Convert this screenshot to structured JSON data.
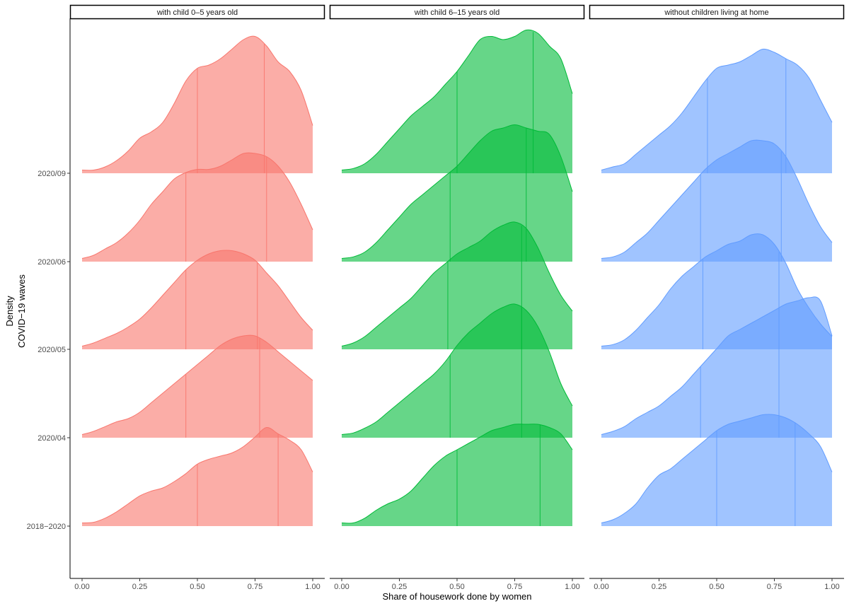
{
  "chart_data": {
    "type": "area",
    "subtype": "ridgeline-density",
    "xlabel": "Share of housework done by women",
    "ylabel_lines": [
      "Density",
      "COVID−19 waves"
    ],
    "x_ticks": [
      "0.00",
      "0.25",
      "0.50",
      "0.75",
      "1.00"
    ],
    "xlim": [
      0,
      1
    ],
    "waves": [
      "2018−2020",
      "2020/04",
      "2020/05",
      "2020/06",
      "2020/09"
    ],
    "grid": false,
    "legend": "none",
    "quantile_lines": "25th and 75th percentile",
    "panels": [
      {
        "title": "with child 0–5 years old",
        "color": "#F8766D",
        "ridges": [
          {
            "wave": "2018−2020",
            "q": [
              0.5,
              0.85
            ],
            "x": [
              0,
              0.05,
              0.1,
              0.15,
              0.2,
              0.25,
              0.3,
              0.35,
              0.4,
              0.45,
              0.5,
              0.55,
              0.6,
              0.65,
              0.7,
              0.75,
              0.8,
              0.85,
              0.9,
              0.95,
              1
            ],
            "y": [
              0.1,
              0.12,
              0.25,
              0.45,
              0.7,
              0.95,
              1.1,
              1.2,
              1.4,
              1.65,
              1.95,
              2.1,
              2.2,
              2.3,
              2.5,
              2.8,
              3.1,
              2.9,
              2.7,
              2.4,
              1.7
            ]
          },
          {
            "wave": "2020/04",
            "q": [
              0.45,
              0.77
            ],
            "x": [
              0,
              0.05,
              0.1,
              0.15,
              0.2,
              0.25,
              0.3,
              0.35,
              0.4,
              0.45,
              0.5,
              0.55,
              0.6,
              0.65,
              0.7,
              0.75,
              0.8,
              0.85,
              0.9,
              0.95,
              1
            ],
            "y": [
              0.1,
              0.2,
              0.35,
              0.5,
              0.6,
              0.8,
              1.1,
              1.4,
              1.7,
              2.0,
              2.3,
              2.6,
              2.9,
              3.1,
              3.2,
              3.2,
              3.0,
              2.7,
              2.4,
              2.1,
              1.8
            ]
          },
          {
            "wave": "2020/05",
            "q": [
              0.45,
              0.76
            ],
            "x": [
              0,
              0.05,
              0.1,
              0.15,
              0.2,
              0.25,
              0.3,
              0.35,
              0.4,
              0.45,
              0.5,
              0.55,
              0.6,
              0.65,
              0.7,
              0.75,
              0.8,
              0.85,
              0.9,
              0.95,
              1
            ],
            "y": [
              0.1,
              0.2,
              0.35,
              0.5,
              0.7,
              0.95,
              1.3,
              1.7,
              2.1,
              2.5,
              2.8,
              3.0,
              3.1,
              3.1,
              3.0,
              2.8,
              2.4,
              2.0,
              1.5,
              1.0,
              0.6
            ]
          },
          {
            "wave": "2020/06",
            "q": [
              0.45,
              0.8
            ],
            "x": [
              0,
              0.05,
              0.1,
              0.15,
              0.2,
              0.25,
              0.3,
              0.35,
              0.4,
              0.45,
              0.5,
              0.55,
              0.6,
              0.65,
              0.7,
              0.75,
              0.8,
              0.85,
              0.9,
              0.95,
              1
            ],
            "y": [
              0.1,
              0.2,
              0.4,
              0.6,
              0.9,
              1.3,
              1.8,
              2.2,
              2.6,
              2.8,
              2.9,
              2.9,
              3.0,
              3.2,
              3.4,
              3.4,
              3.3,
              3.0,
              2.5,
              1.8,
              1.0
            ]
          },
          {
            "wave": "2020/09",
            "q": [
              0.5,
              0.79
            ],
            "x": [
              0,
              0.05,
              0.1,
              0.15,
              0.2,
              0.25,
              0.3,
              0.35,
              0.4,
              0.45,
              0.5,
              0.55,
              0.6,
              0.65,
              0.7,
              0.75,
              0.8,
              0.85,
              0.9,
              0.95,
              1
            ],
            "y": [
              0.1,
              0.1,
              0.2,
              0.4,
              0.7,
              1.1,
              1.3,
              1.6,
              2.2,
              2.9,
              3.3,
              3.4,
              3.6,
              3.9,
              4.2,
              4.3,
              4.0,
              3.5,
              3.2,
              2.6,
              1.5
            ]
          }
        ]
      },
      {
        "title": "with child 6–15 years old",
        "color": "#00BA38",
        "ridges": [
          {
            "wave": "2018−2020",
            "q": [
              0.5,
              0.86
            ],
            "x": [
              0,
              0.05,
              0.1,
              0.15,
              0.2,
              0.25,
              0.3,
              0.35,
              0.4,
              0.45,
              0.5,
              0.55,
              0.6,
              0.65,
              0.7,
              0.75,
              0.8,
              0.85,
              0.9,
              0.95,
              1
            ],
            "y": [
              0.1,
              0.1,
              0.25,
              0.5,
              0.7,
              0.85,
              1.1,
              1.5,
              1.9,
              2.2,
              2.4,
              2.6,
              2.8,
              3.0,
              3.1,
              3.2,
              3.2,
              3.2,
              3.1,
              2.9,
              2.4
            ]
          },
          {
            "wave": "2020/04",
            "q": [
              0.47,
              0.78
            ],
            "x": [
              0,
              0.05,
              0.1,
              0.15,
              0.2,
              0.25,
              0.3,
              0.35,
              0.4,
              0.45,
              0.5,
              0.55,
              0.6,
              0.65,
              0.7,
              0.75,
              0.8,
              0.85,
              0.9,
              0.95,
              1
            ],
            "y": [
              0.1,
              0.15,
              0.3,
              0.5,
              0.8,
              1.1,
              1.4,
              1.7,
              2.0,
              2.4,
              2.9,
              3.3,
              3.6,
              3.9,
              4.1,
              4.2,
              4.0,
              3.5,
              2.7,
              1.7,
              1.0
            ]
          },
          {
            "wave": "2020/05",
            "q": [
              0.46,
              0.78
            ],
            "x": [
              0,
              0.05,
              0.1,
              0.15,
              0.2,
              0.25,
              0.3,
              0.35,
              0.4,
              0.45,
              0.5,
              0.55,
              0.6,
              0.65,
              0.7,
              0.75,
              0.8,
              0.85,
              0.9,
              0.95,
              1
            ],
            "y": [
              0.1,
              0.2,
              0.4,
              0.7,
              1.0,
              1.3,
              1.6,
              2.0,
              2.4,
              2.7,
              3.0,
              3.2,
              3.4,
              3.7,
              3.9,
              4.0,
              3.8,
              3.2,
              2.4,
              1.7,
              1.2
            ]
          },
          {
            "wave": "2020/06",
            "q": [
              0.47,
              0.8
            ],
            "x": [
              0,
              0.05,
              0.1,
              0.15,
              0.2,
              0.25,
              0.3,
              0.35,
              0.4,
              0.45,
              0.5,
              0.55,
              0.6,
              0.65,
              0.7,
              0.75,
              0.8,
              0.85,
              0.9,
              0.95,
              1
            ],
            "y": [
              0.1,
              0.15,
              0.3,
              0.6,
              1.0,
              1.4,
              1.8,
              2.1,
              2.4,
              2.7,
              3.0,
              3.4,
              3.8,
              4.1,
              4.2,
              4.3,
              4.2,
              4.1,
              4.0,
              3.3,
              2.2
            ]
          },
          {
            "wave": "2020/09",
            "q": [
              0.5,
              0.83
            ],
            "x": [
              0,
              0.05,
              0.1,
              0.15,
              0.2,
              0.25,
              0.3,
              0.35,
              0.4,
              0.45,
              0.5,
              0.55,
              0.6,
              0.65,
              0.7,
              0.75,
              0.8,
              0.85,
              0.9,
              0.95,
              1
            ],
            "y": [
              0.1,
              0.15,
              0.3,
              0.6,
              1.0,
              1.4,
              1.8,
              2.1,
              2.4,
              2.8,
              3.2,
              3.7,
              4.2,
              4.3,
              4.2,
              4.3,
              4.5,
              4.4,
              4.0,
              3.6,
              2.5
            ]
          }
        ]
      },
      {
        "title": "without children living at home",
        "color": "#619CFF",
        "ridges": [
          {
            "wave": "2018−2020",
            "q": [
              0.5,
              0.84
            ],
            "x": [
              0,
              0.05,
              0.1,
              0.15,
              0.2,
              0.25,
              0.3,
              0.35,
              0.4,
              0.45,
              0.5,
              0.55,
              0.6,
              0.65,
              0.7,
              0.75,
              0.8,
              0.85,
              0.9,
              0.95,
              1
            ],
            "y": [
              0.1,
              0.2,
              0.4,
              0.7,
              1.2,
              1.6,
              1.8,
              2.1,
              2.4,
              2.7,
              3.0,
              3.2,
              3.3,
              3.4,
              3.5,
              3.5,
              3.4,
              3.2,
              2.9,
              2.5,
              1.7
            ]
          },
          {
            "wave": "2020/04",
            "q": [
              0.43,
              0.77
            ],
            "x": [
              0,
              0.05,
              0.1,
              0.15,
              0.2,
              0.25,
              0.3,
              0.35,
              0.4,
              0.45,
              0.5,
              0.55,
              0.6,
              0.65,
              0.7,
              0.75,
              0.8,
              0.85,
              0.9,
              0.95,
              1
            ],
            "y": [
              0.1,
              0.2,
              0.35,
              0.6,
              0.8,
              1.0,
              1.3,
              1.6,
              2.0,
              2.4,
              2.8,
              3.2,
              3.4,
              3.6,
              3.8,
              4.0,
              4.2,
              4.3,
              4.4,
              4.3,
              3.2
            ]
          },
          {
            "wave": "2020/05",
            "q": [
              0.44,
              0.77
            ],
            "x": [
              0,
              0.05,
              0.1,
              0.15,
              0.2,
              0.25,
              0.3,
              0.35,
              0.4,
              0.45,
              0.5,
              0.55,
              0.6,
              0.65,
              0.7,
              0.75,
              0.8,
              0.85,
              0.9,
              0.95,
              1
            ],
            "y": [
              0.1,
              0.15,
              0.3,
              0.6,
              1.0,
              1.4,
              1.9,
              2.3,
              2.6,
              2.9,
              3.1,
              3.3,
              3.4,
              3.6,
              3.6,
              3.3,
              2.7,
              1.9,
              1.3,
              0.8,
              0.4
            ]
          },
          {
            "wave": "2020/06",
            "q": [
              0.43,
              0.78
            ],
            "x": [
              0,
              0.05,
              0.1,
              0.15,
              0.2,
              0.25,
              0.3,
              0.35,
              0.4,
              0.45,
              0.5,
              0.55,
              0.6,
              0.65,
              0.7,
              0.75,
              0.8,
              0.85,
              0.9,
              0.95,
              1
            ],
            "y": [
              0.1,
              0.15,
              0.3,
              0.6,
              0.9,
              1.3,
              1.7,
              2.1,
              2.5,
              2.9,
              3.2,
              3.4,
              3.6,
              3.8,
              3.8,
              3.7,
              3.3,
              2.6,
              1.8,
              1.1,
              0.6
            ]
          },
          {
            "wave": "2020/09",
            "q": [
              0.46,
              0.8
            ],
            "x": [
              0,
              0.05,
              0.1,
              0.15,
              0.2,
              0.25,
              0.3,
              0.35,
              0.4,
              0.45,
              0.5,
              0.55,
              0.6,
              0.65,
              0.7,
              0.75,
              0.8,
              0.85,
              0.9,
              0.95,
              1
            ],
            "y": [
              0.1,
              0.2,
              0.3,
              0.6,
              0.9,
              1.2,
              1.5,
              1.9,
              2.4,
              2.9,
              3.3,
              3.4,
              3.5,
              3.7,
              3.9,
              3.8,
              3.6,
              3.4,
              3.0,
              2.3,
              1.6
            ]
          }
        ]
      }
    ]
  }
}
